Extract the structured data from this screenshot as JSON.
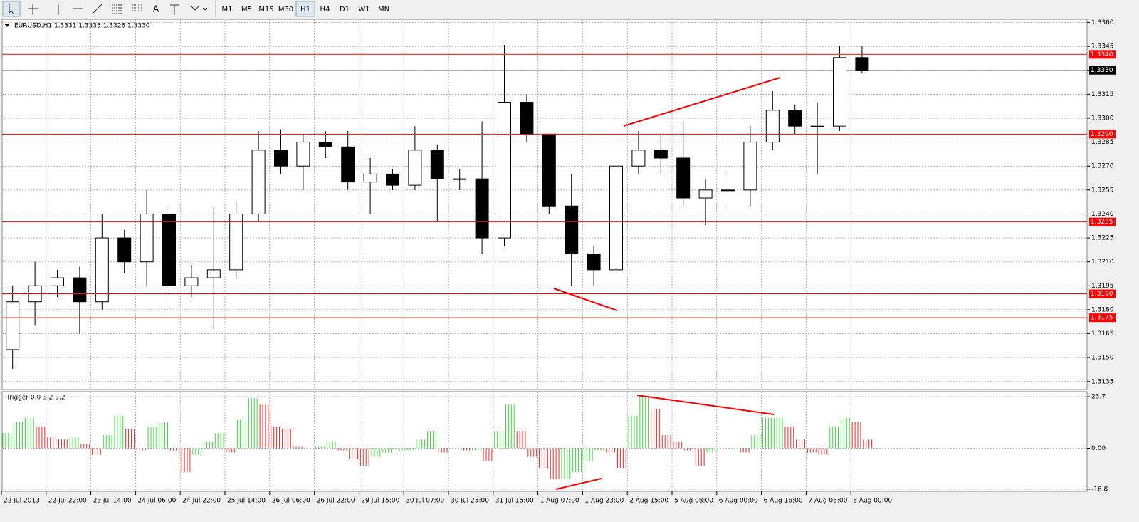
{
  "toolbar": {
    "timeframes": [
      "M1",
      "M5",
      "M15",
      "M30",
      "H1",
      "H4",
      "D1",
      "W1",
      "MN"
    ],
    "active": "H1",
    "text_tool": "A"
  },
  "chart_data": [
    {
      "type": "candlestick",
      "title": "EURUSD,H1  1.3331 1.3335 1.3328 1.3330",
      "categories": [
        "22 Jul 2013",
        null,
        "22 Jul 22:00",
        null,
        "23 Jul 14:00",
        null,
        "24 Jul 06:00",
        null,
        "24 Jul 22:00",
        null,
        "25 Jul 14:00",
        null,
        "26 Jul 06:00",
        null,
        "26 Jul 22:00",
        null,
        "29 Jul 15:00",
        null,
        "30 Jul 07:00",
        null,
        "30 Jul 23:00",
        null,
        "31 Jul 15:00",
        null,
        "1 Aug 07:00",
        null,
        "1 Aug 23:00",
        null,
        "2 Aug 15:00",
        null,
        "5 Aug 08:00",
        null,
        "6 Aug 00:00",
        null,
        "6 Aug 16:00",
        null,
        "7 Aug 08:00",
        null,
        "8 Aug 00:00"
      ],
      "open": [
        1.3155,
        1.3185,
        1.3195,
        1.32,
        1.3185,
        1.3225,
        1.321,
        1.324,
        1.3195,
        1.32,
        1.3205,
        1.324,
        1.328,
        1.327,
        1.3285,
        1.3282,
        1.326,
        1.3265,
        1.3258,
        1.328,
        1.3262,
        1.3262,
        1.3225,
        1.331,
        1.329,
        1.3245,
        1.3215,
        1.3205,
        1.327,
        1.328,
        1.3275,
        1.325,
        1.3255,
        1.3255,
        1.3285,
        1.3305,
        1.3295,
        1.3295,
        1.3338
      ],
      "high": [
        1.3195,
        1.321,
        1.3205,
        1.3207,
        1.324,
        1.323,
        1.3255,
        1.3245,
        1.3208,
        1.3245,
        1.3248,
        1.3292,
        1.3293,
        1.329,
        1.3292,
        1.3292,
        1.3275,
        1.3268,
        1.3295,
        1.3283,
        1.3268,
        1.3298,
        1.3346,
        1.3315,
        1.329,
        1.3265,
        1.322,
        1.3272,
        1.3292,
        1.329,
        1.3298,
        1.3262,
        1.3265,
        1.3295,
        1.3317,
        1.3308,
        1.331,
        1.3345,
        1.3345
      ],
      "low": [
        1.3143,
        1.317,
        1.3188,
        1.3165,
        1.318,
        1.3203,
        1.3195,
        1.318,
        1.3188,
        1.3168,
        1.32,
        1.3235,
        1.3265,
        1.3255,
        1.3275,
        1.3255,
        1.324,
        1.3255,
        1.3255,
        1.3235,
        1.3255,
        1.3215,
        1.322,
        1.3285,
        1.324,
        1.3195,
        1.3195,
        1.3192,
        1.3265,
        1.3265,
        1.3245,
        1.3233,
        1.3245,
        1.3245,
        1.328,
        1.329,
        1.3265,
        1.3292,
        1.3328
      ],
      "close": [
        1.3185,
        1.3195,
        1.32,
        1.3185,
        1.3225,
        1.321,
        1.324,
        1.3195,
        1.32,
        1.3205,
        1.324,
        1.328,
        1.327,
        1.3285,
        1.3282,
        1.326,
        1.3265,
        1.3258,
        1.328,
        1.3262,
        1.3262,
        1.3225,
        1.331,
        1.329,
        1.3245,
        1.3215,
        1.3205,
        1.327,
        1.328,
        1.3275,
        1.325,
        1.3255,
        1.3255,
        1.3285,
        1.3305,
        1.3295,
        1.3295,
        1.3338,
        1.333
      ],
      "up_color": "#ffffff",
      "down_color": "#000000",
      "line_color": "#000000",
      "ylim": [
        1.313,
        1.3362
      ],
      "yticks": [
        {
          "value": 1.3135,
          "label": "1.3135"
        },
        {
          "value": 1.315,
          "label": "1.3150"
        },
        {
          "value": 1.3165,
          "label": "1.3165"
        },
        {
          "value": 1.318,
          "label": "1.3180"
        },
        {
          "value": 1.3195,
          "label": "1.3195"
        },
        {
          "value": 1.321,
          "label": "1.3210"
        },
        {
          "value": 1.3225,
          "label": "1.3225"
        },
        {
          "value": 1.324,
          "label": "1.3240"
        },
        {
          "value": 1.3255,
          "label": "1.3255"
        },
        {
          "value": 1.327,
          "label": "1.3270"
        },
        {
          "value": 1.3285,
          "label": "1.3285"
        },
        {
          "value": 1.33,
          "label": "1.3300"
        },
        {
          "value": 1.3315,
          "label": "1.3315"
        },
        {
          "value": 1.333,
          "label": "1.3330"
        },
        {
          "value": 1.3345,
          "label": "1.3345"
        },
        {
          "value": 1.336,
          "label": "1.3360"
        }
      ],
      "levels": [
        {
          "value": 1.334,
          "label": "1.3340"
        },
        {
          "value": 1.329,
          "label": "1.3290"
        },
        {
          "value": 1.3235,
          "label": "1.3235"
        },
        {
          "value": 1.319,
          "label": "1.3190"
        },
        {
          "value": 1.3175,
          "label": "1.3175"
        }
      ],
      "level_color": "#ff0000",
      "current": {
        "value": 1.333,
        "label": "1.3330"
      },
      "grid": true
    },
    {
      "type": "bar",
      "title": "Trigger 0.0 3.2 3.2",
      "values": [
        7,
        12,
        14,
        10,
        5,
        4,
        5,
        2,
        -3,
        6,
        15,
        9,
        -1,
        10,
        12,
        -1,
        -11,
        -3,
        3,
        7,
        -2,
        13,
        23,
        20,
        10,
        9,
        1,
        0,
        1,
        3,
        -1,
        -5,
        -8,
        -4,
        -2,
        -1,
        -1,
        4,
        8,
        -2,
        0,
        -1,
        -1,
        -6,
        8,
        20,
        8,
        -4,
        -9,
        -14,
        -14,
        -11,
        -6,
        -1,
        -2,
        -9,
        15,
        24,
        18,
        6,
        3,
        -1,
        -8,
        -2,
        0,
        0,
        -2,
        6,
        14,
        14,
        10,
        4,
        -2,
        -3,
        10,
        14,
        12,
        4
      ],
      "up_color": "#33dd33",
      "down_color": "#ff2222",
      "ylim": [
        -19.8,
        26
      ],
      "yticks": [
        23.7,
        {
          "value": 0,
          "label": "0.00"
        },
        -18.8
      ],
      "grid": true
    }
  ]
}
